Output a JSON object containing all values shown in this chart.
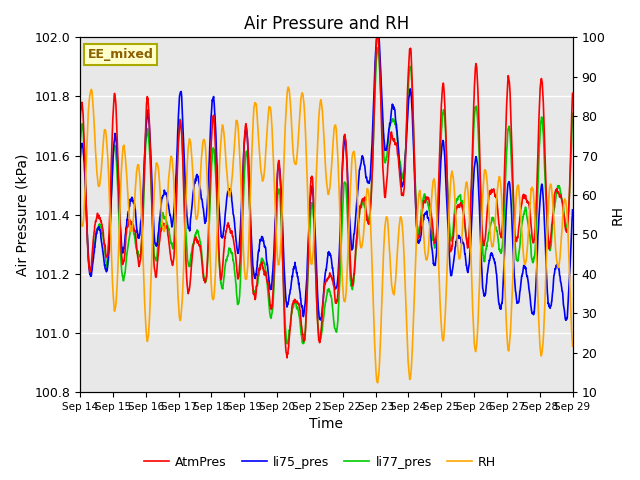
{
  "title": "Air Pressure and RH",
  "xlabel": "Time",
  "ylabel_left": "Air Pressure (kPa)",
  "ylabel_right": "RH",
  "ylim_left": [
    100.8,
    102.0
  ],
  "ylim_right": [
    10,
    100
  ],
  "yticks_left": [
    100.8,
    101.0,
    101.2,
    101.4,
    101.6,
    101.8,
    102.0
  ],
  "yticks_right": [
    10,
    20,
    30,
    40,
    50,
    60,
    70,
    80,
    90,
    100
  ],
  "x_labels": [
    "Sep 14",
    "Sep 15",
    "Sep 16",
    "Sep 17",
    "Sep 18",
    "Sep 19",
    "Sep 20",
    "Sep 21",
    "Sep 22",
    "Sep 23",
    "Sep 24",
    "Sep 25",
    "Sep 26",
    "Sep 27",
    "Sep 28",
    "Sep 29"
  ],
  "annotation_text": "EE_mixed",
  "annotation_color": "#8B6000",
  "annotation_bg": "#FFFFCC",
  "annotation_edge": "#AAAA00",
  "bg_color": "#E8E8E8",
  "line_colors": {
    "AtmPres": "#FF0000",
    "li75_pres": "#0000FF",
    "li77_pres": "#00CC00",
    "RH": "#FFA500"
  },
  "line_widths": {
    "AtmPres": 1.2,
    "li75_pres": 1.2,
    "li77_pres": 1.2,
    "RH": 1.2
  },
  "figsize": [
    6.4,
    4.8
  ],
  "dpi": 100
}
